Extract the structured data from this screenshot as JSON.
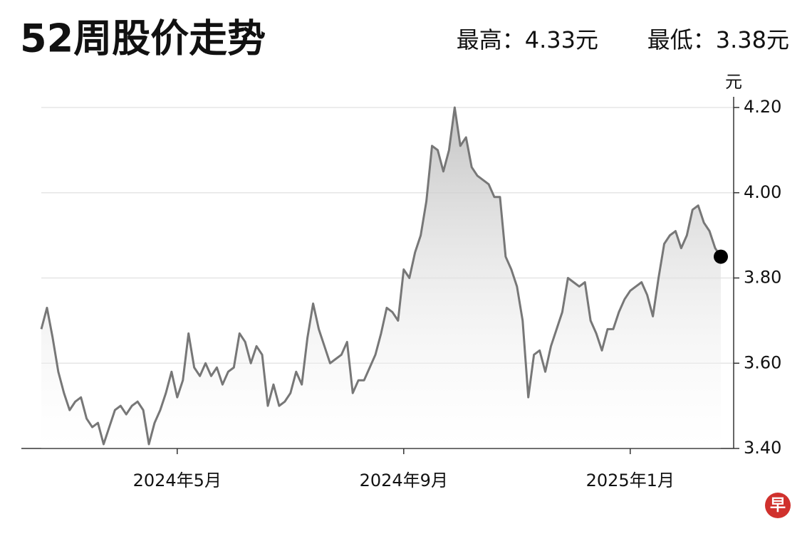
{
  "chart_data": {
    "type": "line",
    "title": "52周股价走势",
    "annotations": [
      "最高：4.33元",
      "最低：3.38元"
    ],
    "y_unit": "元",
    "logo": "早",
    "categories": [
      null,
      null,
      null,
      null,
      null,
      null,
      null,
      null,
      null,
      null,
      null,
      null,
      null,
      null,
      null,
      null,
      null,
      null,
      null,
      null,
      null,
      null,
      null,
      null,
      "2024年5月",
      null,
      null,
      null,
      null,
      null,
      null,
      null,
      null,
      null,
      null,
      null,
      null,
      null,
      null,
      null,
      null,
      null,
      null,
      null,
      null,
      null,
      null,
      null,
      null,
      null,
      null,
      null,
      null,
      null,
      null,
      null,
      null,
      null,
      null,
      null,
      null,
      null,
      null,
      null,
      "2024年9月",
      null,
      null,
      null,
      null,
      null,
      null,
      null,
      null,
      null,
      null,
      null,
      null,
      null,
      null,
      null,
      null,
      null,
      null,
      null,
      null,
      null,
      null,
      null,
      null,
      null,
      null,
      null,
      null,
      null,
      null,
      null,
      null,
      null,
      null,
      null,
      null,
      null,
      null,
      null,
      "2025年1月",
      null,
      null,
      null,
      null,
      null,
      null,
      null,
      null,
      null,
      null,
      null,
      null,
      null,
      null,
      null,
      null
    ],
    "values": [
      3.68,
      3.73,
      3.66,
      3.58,
      3.53,
      3.49,
      3.51,
      3.52,
      3.47,
      3.45,
      3.46,
      3.41,
      3.45,
      3.49,
      3.5,
      3.48,
      3.5,
      3.51,
      3.49,
      3.41,
      3.46,
      3.49,
      3.53,
      3.58,
      3.52,
      3.56,
      3.67,
      3.59,
      3.57,
      3.6,
      3.57,
      3.59,
      3.55,
      3.58,
      3.59,
      3.67,
      3.65,
      3.6,
      3.64,
      3.62,
      3.5,
      3.55,
      3.5,
      3.51,
      3.53,
      3.58,
      3.55,
      3.66,
      3.74,
      3.68,
      3.64,
      3.6,
      3.61,
      3.62,
      3.65,
      3.53,
      3.56,
      3.56,
      3.59,
      3.62,
      3.67,
      3.73,
      3.72,
      3.7,
      3.82,
      3.8,
      3.86,
      3.9,
      3.98,
      4.11,
      4.1,
      4.05,
      4.1,
      4.2,
      4.11,
      4.13,
      4.06,
      4.04,
      4.03,
      4.02,
      3.99,
      3.99,
      3.85,
      3.82,
      3.78,
      3.7,
      3.52,
      3.62,
      3.63,
      3.58,
      3.64,
      3.68,
      3.72,
      3.8,
      3.79,
      3.78,
      3.79,
      3.7,
      3.67,
      3.63,
      3.68,
      3.68,
      3.72,
      3.75,
      3.77,
      3.78,
      3.79,
      3.76,
      3.71,
      3.8,
      3.88,
      3.9,
      3.91,
      3.87,
      3.9,
      3.96,
      3.97,
      3.93,
      3.91,
      3.87,
      3.85
    ],
    "color": "#777777",
    "marker_color": "#000000",
    "ylim": [
      3.4,
      4.2
    ],
    "yticks": [
      {
        "value": 3.4,
        "label": "3.40"
      },
      {
        "value": 3.6,
        "label": "3.60"
      },
      {
        "value": 3.8,
        "label": "3.80"
      },
      {
        "value": 4.0,
        "label": "4.00"
      },
      {
        "value": 4.2,
        "label": "4.20"
      }
    ],
    "grid": true
  }
}
